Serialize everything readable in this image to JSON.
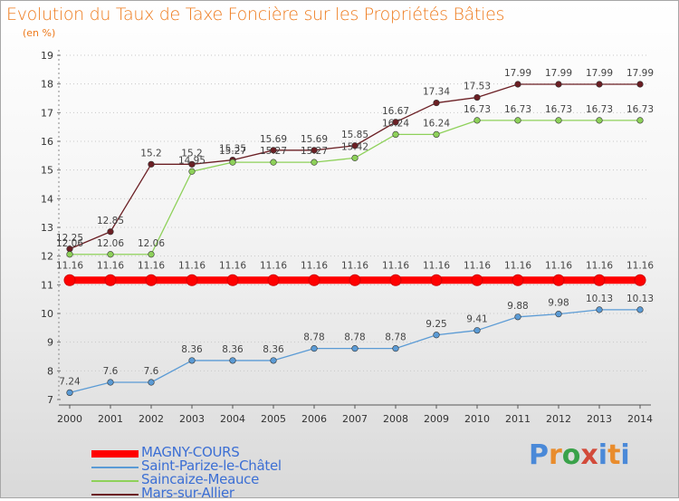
{
  "title": "Evolution du Taux de Taxe Foncière sur les Propriétés Bâties",
  "unit_label": "(en %)",
  "brand": [
    "P",
    "r",
    "o",
    "x",
    "i",
    "t",
    "i"
  ],
  "chart_data": {
    "type": "line",
    "title": "Evolution du Taux de Taxe Foncière sur les Propriétés Bâties",
    "ylabel": "(en %)",
    "xlabel": "",
    "x": [
      "2000",
      "2001",
      "2002",
      "2003",
      "2004",
      "2005",
      "2006",
      "2007",
      "2008",
      "2009",
      "2010",
      "2011",
      "2012",
      "2013",
      "2014"
    ],
    "ylim": [
      7,
      19
    ],
    "yticks": [
      "7",
      "8",
      "9",
      "10",
      "11",
      "12",
      "13",
      "14",
      "15",
      "16",
      "17",
      "18",
      "19"
    ],
    "series": [
      {
        "name": "Mars-sur-Allier",
        "color": "#6b1f24",
        "values": [
          12.25,
          12.85,
          15.2,
          15.2,
          15.35,
          15.69,
          15.69,
          15.85,
          16.67,
          17.34,
          17.53,
          17.99,
          17.99,
          17.99,
          17.99
        ],
        "labels": [
          "12.25",
          "12.85",
          "15.2",
          "15.2",
          "15.35",
          "15.69",
          "15.69",
          "15.85",
          "16.67",
          "17.34",
          "17.53",
          "17.99",
          "17.99",
          "17.99",
          "17.99"
        ]
      },
      {
        "name": "Saincaize-Meauce",
        "color": "#8ed15a",
        "values": [
          12.06,
          12.06,
          12.06,
          14.95,
          15.27,
          15.27,
          15.27,
          15.42,
          16.24,
          16.24,
          16.73,
          16.73,
          16.73,
          16.73,
          16.73
        ],
        "labels": [
          "12.06",
          "12.06",
          "12.06",
          "14.95",
          "15.27",
          "15.27",
          "15.27",
          "15.42",
          "16.24",
          "16.24",
          "16.73",
          "16.73",
          "16.73",
          "16.73",
          "16.73"
        ]
      },
      {
        "name": "MAGNY-COURS",
        "color": "#ff0000",
        "values": [
          11.16,
          11.16,
          11.16,
          11.16,
          11.16,
          11.16,
          11.16,
          11.16,
          11.16,
          11.16,
          11.16,
          11.16,
          11.16,
          11.16,
          11.16
        ],
        "labels": [
          "11.16",
          "11.16",
          "11.16",
          "11.16",
          "11.16",
          "11.16",
          "11.16",
          "11.16",
          "11.16",
          "11.16",
          "11.16",
          "11.16",
          "11.16",
          "11.16",
          "11.16"
        ]
      },
      {
        "name": "Saint-Parize-le-Châtel",
        "color": "#5b9bd5",
        "values": [
          7.24,
          7.6,
          7.6,
          8.36,
          8.36,
          8.36,
          8.78,
          8.78,
          8.78,
          9.25,
          9.41,
          9.88,
          9.98,
          10.13,
          10.13
        ],
        "labels": [
          "7.24",
          "7.6",
          "7.6",
          "8.36",
          "8.36",
          "8.36",
          "8.78",
          "8.78",
          "8.78",
          "9.25",
          "9.41",
          "9.88",
          "9.98",
          "10.13",
          "10.13"
        ]
      }
    ],
    "legend": [
      "MAGNY-COURS",
      "Saint-Parize-le-Châtel",
      "Saincaize-Meauce",
      "Mars-sur-Allier"
    ],
    "legend_position": "bottom-left",
    "grid": "horizontal-dotted"
  }
}
